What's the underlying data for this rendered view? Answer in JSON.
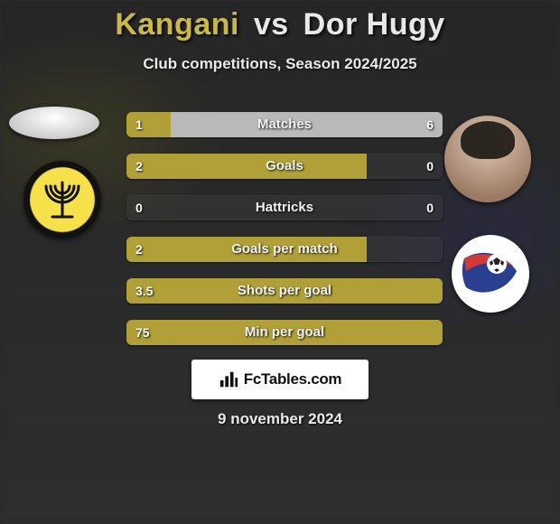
{
  "title": {
    "left": "Kangani",
    "vs": "vs",
    "right": "Dor Hugy"
  },
  "subtitle": "Club competitions, Season 2024/2025",
  "colors": {
    "left_fill": "#b0a037",
    "right_fill": "#b9b9b9",
    "track": "rgba(255,255,255,0.04)",
    "title_left": "#c9b84a",
    "title_right": "#e8e8e8"
  },
  "stats": [
    {
      "label": "Matches",
      "left_text": "1",
      "right_text": "6",
      "left_pct": 14,
      "right_pct": 86
    },
    {
      "label": "Goals",
      "left_text": "2",
      "right_text": "0",
      "left_pct": 76,
      "right_pct": 0
    },
    {
      "label": "Hattricks",
      "left_text": "0",
      "right_text": "0",
      "left_pct": 0,
      "right_pct": 0
    },
    {
      "label": "Goals per match",
      "left_text": "2",
      "right_text": "",
      "left_pct": 76,
      "right_pct": 0
    },
    {
      "label": "Shots per goal",
      "left_text": "3.5",
      "right_text": "",
      "left_pct": 100,
      "right_pct": 0
    },
    {
      "label": "Min per goal",
      "left_text": "75",
      "right_text": "",
      "left_pct": 100,
      "right_pct": 0
    }
  ],
  "brand": "FcTables.com",
  "date": "9 november 2024",
  "icons": {
    "club_left": "menorah-icon",
    "club_right": "ball-swoosh-icon",
    "brand": "bars-icon"
  }
}
